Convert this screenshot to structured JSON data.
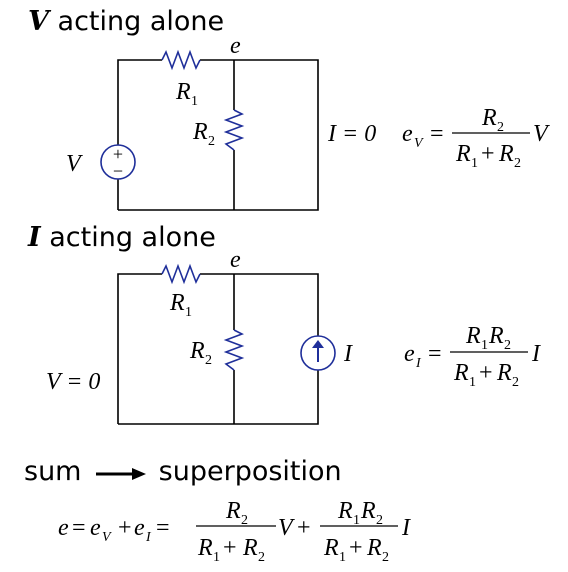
{
  "section_v": {
    "symbol": "V",
    "label": "acting alone"
  },
  "section_i": {
    "symbol": "I",
    "label": "acting alone"
  },
  "section_sum": {
    "left": "sum",
    "right": "superposition"
  },
  "node_label": "e",
  "r1_label": "R",
  "r1_sub": "1",
  "r2_label": "R",
  "r2_sub": "2",
  "source_v": {
    "name": "V",
    "plus": "+",
    "minus": "−"
  },
  "open_i": "I = 0",
  "short_v": "V = 0",
  "source_i": {
    "name": "I"
  },
  "colors": {
    "component": "#1f2f9a",
    "wire": "#000000"
  },
  "icons": {
    "voltage_source": "voltage-source-icon",
    "current_source": "current-source-icon",
    "arrow": "arrow-right-icon"
  }
}
